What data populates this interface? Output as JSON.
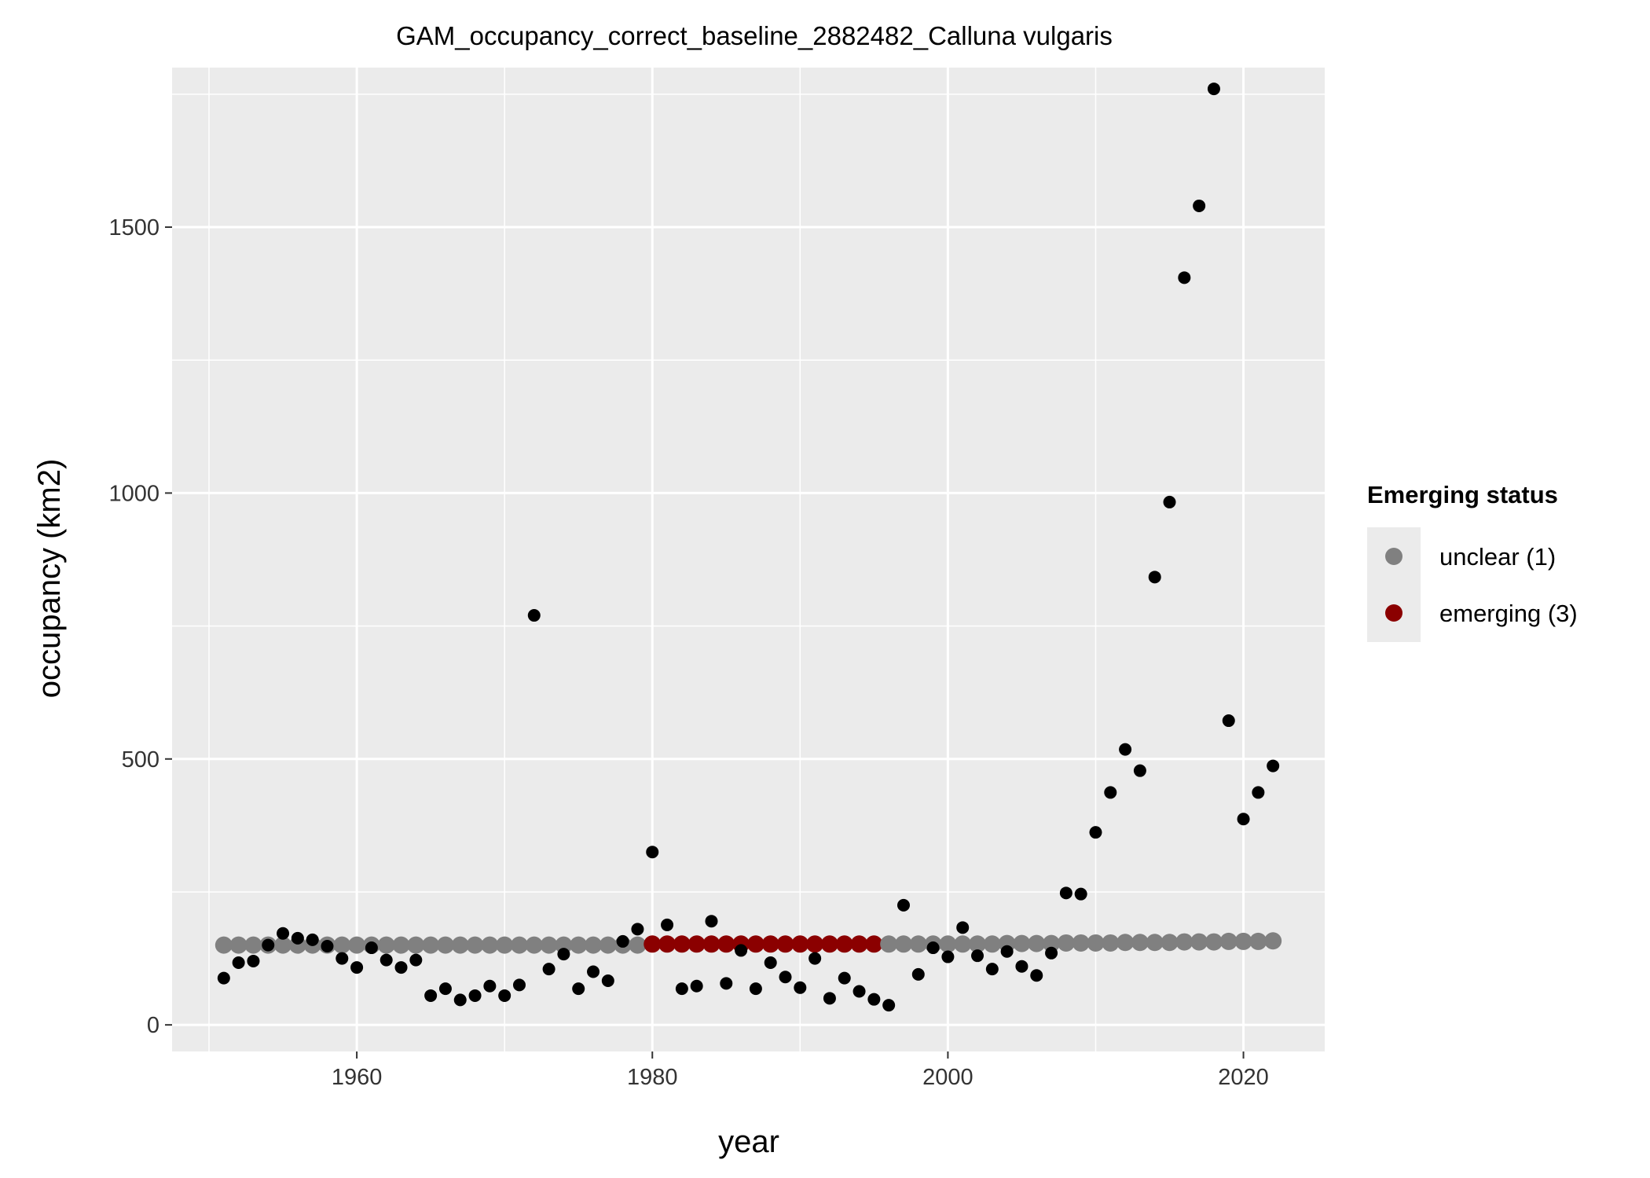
{
  "chart_data": {
    "type": "scatter",
    "title": "GAM_occupancy_correct_baseline_2882482_Calluna vulgaris",
    "xlabel": "year",
    "ylabel": "occupancy (km2)",
    "xlim": [
      1947.5,
      2025.5
    ],
    "ylim": [
      -50,
      1800
    ],
    "x_ticks": [
      1960,
      1980,
      2000,
      2020
    ],
    "y_ticks": [
      0,
      500,
      1000,
      1500
    ],
    "x_tick_labels": [
      "1960",
      "1980",
      "2000",
      "2020"
    ],
    "y_tick_labels": [
      "0",
      "500",
      "1000",
      "1500"
    ],
    "grid": true,
    "legend_position": "right",
    "colors": {
      "panel": "#ebebeb",
      "grid": "#ffffff",
      "observed": "#000000",
      "unclear": "#808080",
      "emerging": "#8b0000"
    },
    "legend": {
      "title": "Emerging status",
      "items": [
        {
          "label": "unclear (1)",
          "color": "#808080"
        },
        {
          "label": "emerging (3)",
          "color": "#8b0000"
        }
      ]
    },
    "observed": {
      "x": [
        1951,
        1952,
        1953,
        1954,
        1955,
        1956,
        1957,
        1958,
        1959,
        1960,
        1961,
        1962,
        1963,
        1964,
        1965,
        1966,
        1967,
        1968,
        1969,
        1970,
        1971,
        1972,
        1973,
        1974,
        1975,
        1976,
        1977,
        1978,
        1979,
        1980,
        1981,
        1982,
        1983,
        1984,
        1985,
        1986,
        1987,
        1988,
        1989,
        1990,
        1991,
        1992,
        1993,
        1994,
        1995,
        1996,
        1997,
        1998,
        1999,
        2000,
        2001,
        2002,
        2003,
        2004,
        2005,
        2006,
        2007,
        2008,
        2009,
        2010,
        2011,
        2012,
        2013,
        2014,
        2015,
        2016,
        2017,
        2018,
        2019,
        2020,
        2021,
        2022
      ],
      "y": [
        88,
        117,
        120,
        150,
        172,
        163,
        160,
        148,
        125,
        108,
        145,
        122,
        108,
        122,
        55,
        68,
        47,
        55,
        73,
        55,
        75,
        770,
        105,
        133,
        68,
        100,
        83,
        157,
        180,
        325,
        188,
        68,
        73,
        195,
        78,
        140,
        68,
        117,
        90,
        70,
        125,
        50,
        88,
        63,
        48,
        37,
        225,
        95,
        145,
        128,
        183,
        130,
        105,
        138,
        110,
        93,
        135,
        248,
        246,
        362,
        437,
        518,
        478,
        842,
        983,
        1405,
        1540,
        1760,
        572,
        387,
        437,
        487
      ]
    },
    "gam_fit": {
      "x": [
        1951,
        1952,
        1953,
        1954,
        1955,
        1956,
        1957,
        1958,
        1959,
        1960,
        1961,
        1962,
        1963,
        1964,
        1965,
        1966,
        1967,
        1968,
        1969,
        1970,
        1971,
        1972,
        1973,
        1974,
        1975,
        1976,
        1977,
        1978,
        1979,
        1980,
        1981,
        1982,
        1983,
        1984,
        1985,
        1986,
        1987,
        1988,
        1989,
        1990,
        1991,
        1992,
        1993,
        1994,
        1995,
        1996,
        1997,
        1998,
        1999,
        2000,
        2001,
        2002,
        2003,
        2004,
        2005,
        2006,
        2007,
        2008,
        2009,
        2010,
        2011,
        2012,
        2013,
        2014,
        2015,
        2016,
        2017,
        2018,
        2019,
        2020,
        2021,
        2022
      ],
      "y": [
        150,
        150,
        150,
        150,
        150,
        150,
        150,
        150,
        150,
        150,
        150,
        150,
        150,
        150,
        150,
        150,
        150,
        150,
        150,
        150,
        150,
        150,
        150,
        150,
        150,
        150,
        150,
        150,
        150,
        152,
        152,
        152,
        152,
        152,
        152,
        152,
        152,
        152,
        152,
        152,
        152,
        152,
        152,
        152,
        152,
        152,
        152,
        152,
        152,
        152,
        152,
        152,
        152,
        153,
        153,
        153,
        153,
        154,
        154,
        154,
        154,
        155,
        155,
        155,
        155,
        156,
        156,
        156,
        157,
        157,
        157,
        158
      ],
      "status": [
        "unclear",
        "unclear",
        "unclear",
        "unclear",
        "unclear",
        "unclear",
        "unclear",
        "unclear",
        "unclear",
        "unclear",
        "unclear",
        "unclear",
        "unclear",
        "unclear",
        "unclear",
        "unclear",
        "unclear",
        "unclear",
        "unclear",
        "unclear",
        "unclear",
        "unclear",
        "unclear",
        "unclear",
        "unclear",
        "unclear",
        "unclear",
        "unclear",
        "unclear",
        "emerging",
        "emerging",
        "emerging",
        "emerging",
        "emerging",
        "emerging",
        "emerging",
        "emerging",
        "emerging",
        "emerging",
        "emerging",
        "emerging",
        "emerging",
        "emerging",
        "emerging",
        "emerging",
        "unclear",
        "unclear",
        "unclear",
        "unclear",
        "unclear",
        "unclear",
        "unclear",
        "unclear",
        "unclear",
        "unclear",
        "unclear",
        "unclear",
        "unclear",
        "unclear",
        "unclear",
        "unclear",
        "unclear",
        "unclear",
        "unclear",
        "unclear",
        "unclear",
        "unclear",
        "unclear",
        "unclear",
        "unclear",
        "unclear",
        "unclear"
      ]
    }
  }
}
